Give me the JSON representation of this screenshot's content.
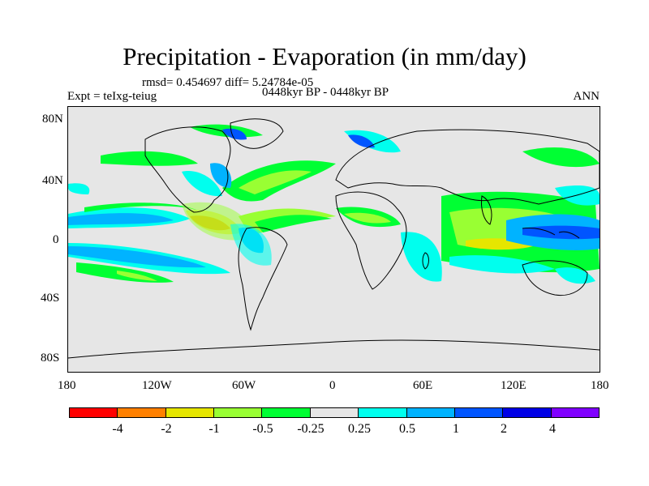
{
  "title": "Precipitation - Evaporation (in mm/day)",
  "subtitle_stats": "rmsd= 0.454697 diff= 5.24784e-05",
  "subtitle_period": "0448kyr BP - 0448kyr BP",
  "left_label": "Expt = teIxg-teiug",
  "right_label": "ANN",
  "lat_labels": [
    "80N",
    "40N",
    "0",
    "40S",
    "80S"
  ],
  "lon_labels": [
    "180",
    "120W",
    "60W",
    "0",
    "60E",
    "120E",
    "180"
  ],
  "colorbar": {
    "colors": [
      "#ff0000",
      "#ff8000",
      "#e6e600",
      "#99ff33",
      "#00ff33",
      "#e6e6e6",
      "#00ffee",
      "#00b3ff",
      "#0055ff",
      "#0000e6",
      "#8000ff"
    ],
    "labels": [
      "-4",
      "-2",
      "-1",
      "-0.5",
      "-0.25",
      "0.25",
      "0.5",
      "1",
      "2",
      "4"
    ]
  },
  "colors": {
    "land": "#e6e6e6",
    "coast": "#000000"
  }
}
